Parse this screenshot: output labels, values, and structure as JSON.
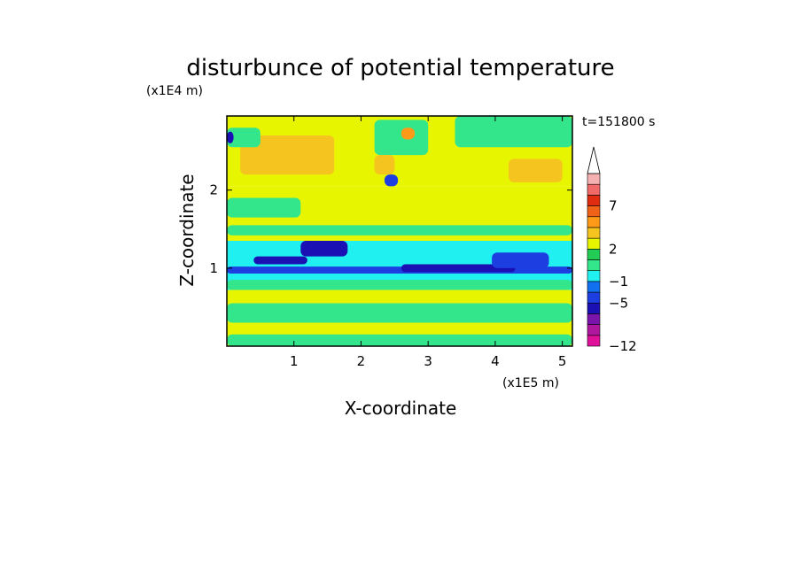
{
  "chart_data": {
    "type": "heatmap",
    "title": "disturbunce of potential temperature",
    "xlabel": "X-coordinate",
    "ylabel": "Z-coordinate",
    "x_scale_label": "(x1E5 m)",
    "y_scale_label": "(x1E4 m)",
    "time_label": "t=151800 s",
    "xlim": [
      0,
      5.15
    ],
    "ylim": [
      0,
      2.95
    ],
    "x_ticks": [
      "1",
      "2",
      "3",
      "4",
      "5"
    ],
    "y_ticks": [
      "1",
      "2"
    ],
    "colorbar": {
      "tick_labels": [
        "7",
        "2",
        "-1",
        "-5",
        "-12"
      ],
      "colors": [
        "#e0109a",
        "#b0179f",
        "#7a14aa",
        "#1a10b4",
        "#1d3ee0",
        "#1070f0",
        "#21f0f0",
        "#33e68c",
        "#22cc55",
        "#e8f500",
        "#f5c41e",
        "#ff9a18",
        "#ef6218",
        "#e02c10",
        "#f06a6a",
        "#f5b0b0"
      ]
    },
    "bands": [
      {
        "z": [
          2.05,
          2.95
        ],
        "fill": "#e8f500"
      },
      {
        "z": [
          1.35,
          2.05
        ],
        "fill": "#e8f500"
      },
      {
        "z": [
          0.72,
          1.35
        ],
        "fill": "#21f0f0"
      },
      {
        "z": [
          0.0,
          0.72
        ],
        "fill": "#e8f500"
      }
    ],
    "features": [
      {
        "x": [
          0.0,
          5.15
        ],
        "z": [
          1.42,
          1.55
        ],
        "fill": "#33e68c"
      },
      {
        "x": [
          0.0,
          5.15
        ],
        "z": [
          0.72,
          0.85
        ],
        "fill": "#33e68c"
      },
      {
        "x": [
          0.0,
          5.15
        ],
        "z": [
          0.9,
          1.1
        ],
        "fill": "#21f0f0"
      },
      {
        "x": [
          0.0,
          5.15
        ],
        "z": [
          0.93,
          1.02
        ],
        "fill": "#1d3ee0"
      },
      {
        "x": [
          0.4,
          1.2
        ],
        "z": [
          1.05,
          1.15
        ],
        "fill": "#1a10b4"
      },
      {
        "x": [
          1.1,
          1.8
        ],
        "z": [
          1.15,
          1.35
        ],
        "fill": "#1a10b4"
      },
      {
        "x": [
          2.6,
          4.3
        ],
        "z": [
          0.95,
          1.05
        ],
        "fill": "#1a10b4"
      },
      {
        "x": [
          3.95,
          4.8
        ],
        "z": [
          1.0,
          1.2
        ],
        "fill": "#1d3ee0"
      },
      {
        "x": [
          0.0,
          5.15
        ],
        "z": [
          0.3,
          0.55
        ],
        "fill": "#33e68c"
      },
      {
        "x": [
          0.0,
          5.15
        ],
        "z": [
          0.0,
          0.15
        ],
        "fill": "#33e68c"
      },
      {
        "x": [
          0.2,
          1.6
        ],
        "z": [
          2.2,
          2.7
        ],
        "fill": "#f5c41e"
      },
      {
        "x": [
          2.2,
          3.0
        ],
        "z": [
          2.45,
          2.9
        ],
        "fill": "#33e68c"
      },
      {
        "x": [
          3.4,
          5.15
        ],
        "z": [
          2.55,
          2.95
        ],
        "fill": "#33e68c"
      },
      {
        "x": [
          4.2,
          5.0
        ],
        "z": [
          2.1,
          2.4
        ],
        "fill": "#f5c41e"
      },
      {
        "x": [
          0.0,
          1.1
        ],
        "z": [
          1.65,
          1.9
        ],
        "fill": "#33e68c"
      },
      {
        "x": [
          0.0,
          0.5
        ],
        "z": [
          2.55,
          2.8
        ],
        "fill": "#33e68c"
      },
      {
        "x": [
          0.0,
          0.1
        ],
        "z": [
          2.6,
          2.75
        ],
        "fill": "#1a10b4"
      },
      {
        "x": [
          2.35,
          2.55
        ],
        "z": [
          2.05,
          2.2
        ],
        "fill": "#1d3ee0"
      },
      {
        "x": [
          2.6,
          2.8
        ],
        "z": [
          2.65,
          2.8
        ],
        "fill": "#ff9a18"
      },
      {
        "x": [
          2.2,
          2.5
        ],
        "z": [
          2.2,
          2.45
        ],
        "fill": "#f5c41e"
      }
    ]
  }
}
